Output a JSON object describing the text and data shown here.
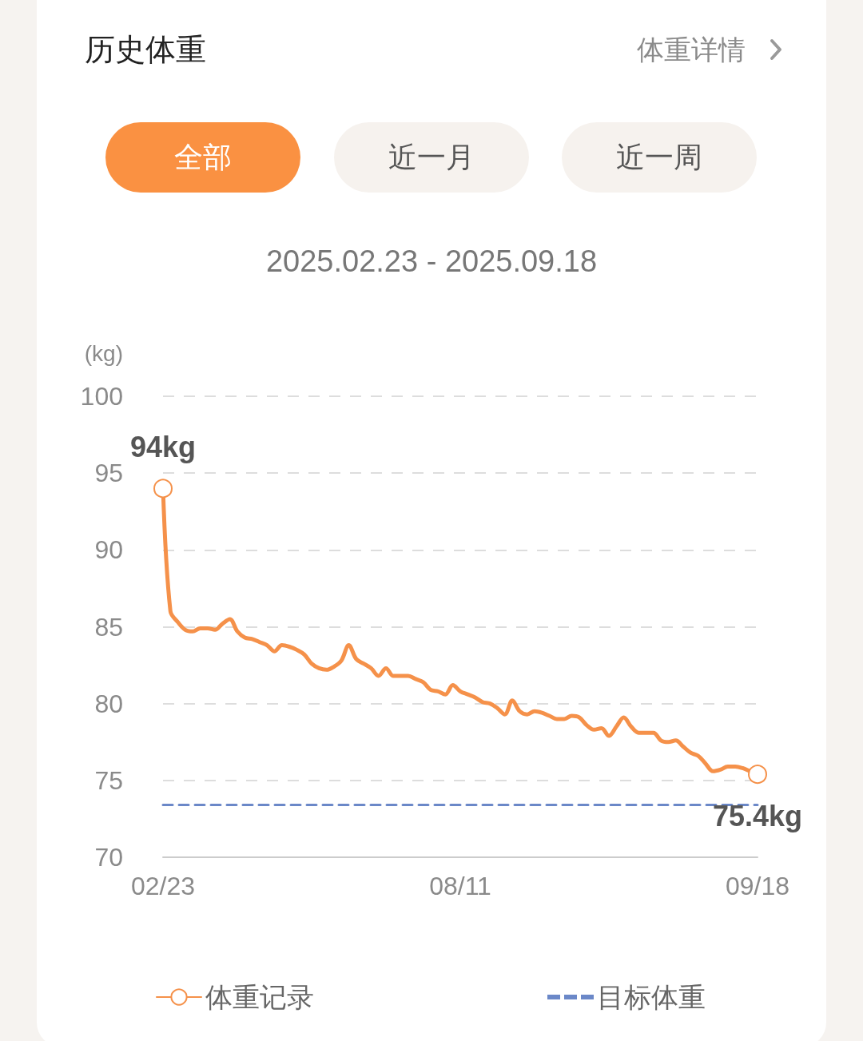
{
  "chart_data": {
    "type": "line",
    "title": "历史体重",
    "subtitle": "2025.02.23 - 2025.09.18",
    "ylabel": "(kg)",
    "annotations": [
      "体重详情",
      "全部",
      "近一月",
      "近一周"
    ],
    "categories": [
      "02/23",
      null,
      null,
      null,
      null,
      null,
      null,
      null,
      null,
      null,
      null,
      null,
      null,
      null,
      null,
      null,
      null,
      null,
      null,
      null,
      null,
      null,
      null,
      null,
      null,
      null,
      null,
      null,
      null,
      null,
      null,
      null,
      null,
      null,
      null,
      null,
      null,
      null,
      null,
      null,
      "08/11",
      null,
      null,
      null,
      null,
      null,
      null,
      null,
      null,
      null,
      null,
      null,
      null,
      null,
      null,
      null,
      null,
      null,
      null,
      null,
      null,
      null,
      null,
      null,
      null,
      null,
      null,
      null,
      null,
      null,
      null,
      null,
      null,
      null,
      null,
      null,
      null,
      null,
      null,
      null,
      "09/18"
    ],
    "series": [
      {
        "name": "体重记录",
        "color": "#f5914a",
        "values": [
          94.0,
          86.0,
          85.3,
          84.8,
          84.7,
          84.9,
          84.9,
          84.8,
          85.2,
          85.5,
          84.7,
          84.3,
          84.2,
          84.0,
          83.8,
          83.4,
          83.8,
          83.7,
          83.5,
          83.2,
          82.6,
          82.3,
          82.2,
          82.4,
          82.8,
          83.8,
          82.9,
          82.6,
          82.3,
          81.8,
          82.3,
          81.8,
          81.8,
          81.8,
          81.6,
          81.4,
          80.9,
          80.8,
          80.6,
          81.2,
          80.8,
          80.6,
          80.4,
          80.1,
          80.0,
          79.7,
          79.3,
          80.2,
          79.5,
          79.3,
          79.5,
          79.4,
          79.2,
          79.0,
          79.0,
          79.2,
          79.1,
          78.6,
          78.3,
          78.4,
          77.9,
          78.5,
          79.1,
          78.5,
          78.1,
          78.1,
          78.1,
          77.6,
          77.5,
          77.6,
          77.2,
          76.8,
          76.6,
          76.1,
          75.6,
          75.7,
          75.9,
          75.9,
          75.8,
          75.6,
          75.4
        ],
        "value_labels": [
          "94kg",
          null,
          null,
          null,
          null,
          null,
          null,
          null,
          null,
          null,
          null,
          null,
          null,
          null,
          null,
          null,
          null,
          null,
          null,
          null,
          null,
          null,
          null,
          null,
          null,
          null,
          null,
          null,
          null,
          null,
          null,
          null,
          null,
          null,
          null,
          null,
          null,
          null,
          null,
          null,
          null,
          null,
          null,
          null,
          null,
          null,
          null,
          null,
          null,
          null,
          null,
          null,
          null,
          null,
          null,
          null,
          null,
          null,
          null,
          null,
          null,
          null,
          null,
          null,
          null,
          null,
          null,
          null,
          null,
          null,
          null,
          null,
          null,
          null,
          null,
          null,
          null,
          null,
          null,
          null,
          "75.4kg"
        ]
      },
      {
        "name": "目标体重",
        "color": "#6b88c8",
        "marker": "none",
        "line_style": "dashed",
        "values": [
          73.4,
          73.4,
          73.4,
          73.4,
          73.4,
          73.4,
          73.4,
          73.4,
          73.4,
          73.4,
          73.4,
          73.4,
          73.4,
          73.4,
          73.4,
          73.4,
          73.4,
          73.4,
          73.4,
          73.4,
          73.4,
          73.4,
          73.4,
          73.4,
          73.4,
          73.4,
          73.4,
          73.4,
          73.4,
          73.4,
          73.4,
          73.4,
          73.4,
          73.4,
          73.4,
          73.4,
          73.4,
          73.4,
          73.4,
          73.4,
          73.4,
          73.4,
          73.4,
          73.4,
          73.4,
          73.4,
          73.4,
          73.4,
          73.4,
          73.4,
          73.4,
          73.4,
          73.4,
          73.4,
          73.4,
          73.4,
          73.4,
          73.4,
          73.4,
          73.4,
          73.4,
          73.4,
          73.4,
          73.4,
          73.4,
          73.4,
          73.4,
          73.4,
          73.4,
          73.4,
          73.4,
          73.4,
          73.4,
          73.4,
          73.4,
          73.4,
          73.4,
          73.4,
          73.4,
          73.4,
          73.4
        ]
      }
    ],
    "ylim": [
      70,
      100
    ],
    "yticks": [
      70,
      75,
      80,
      85,
      90,
      95,
      100
    ],
    "grid": "y",
    "legend": "bottom"
  }
}
